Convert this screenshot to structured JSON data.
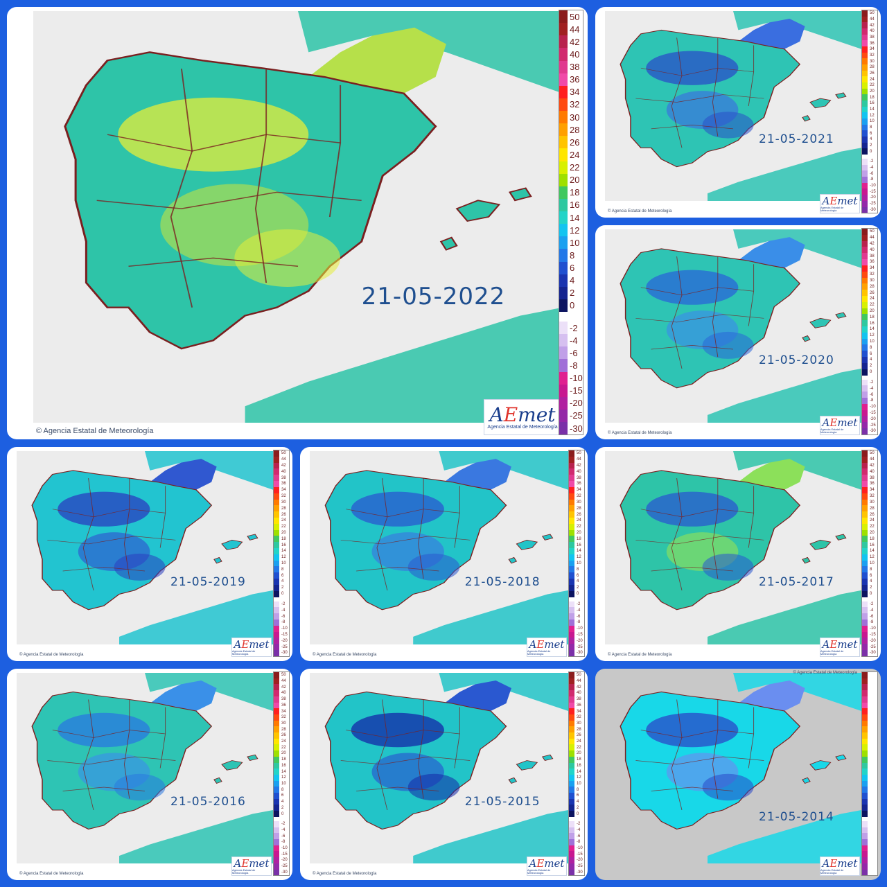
{
  "copyright": "Agencia Estatal de Meteorología",
  "logo": {
    "mark_a": "A",
    "mark_e": "E",
    "mark_rest": "met",
    "sub": "Agencia Estatal de Meteorología"
  },
  "legend": {
    "positive": [
      {
        "label": "50",
        "color": "#8b1c1c"
      },
      {
        "label": "44",
        "color": "#a02020"
      },
      {
        "label": "42",
        "color": "#b8224d"
      },
      {
        "label": "40",
        "color": "#d12a6e"
      },
      {
        "label": "38",
        "color": "#e03a8f"
      },
      {
        "label": "36",
        "color": "#f04aa8"
      },
      {
        "label": "34",
        "color": "#ff1f1f"
      },
      {
        "label": "32",
        "color": "#ff4a10"
      },
      {
        "label": "30",
        "color": "#ff7a00"
      },
      {
        "label": "28",
        "color": "#ffa000"
      },
      {
        "label": "26",
        "color": "#ffc400"
      },
      {
        "label": "24",
        "color": "#ffe600"
      },
      {
        "label": "22",
        "color": "#d8f000"
      },
      {
        "label": "20",
        "color": "#9ee000"
      },
      {
        "label": "18",
        "color": "#40c860"
      },
      {
        "label": "16",
        "color": "#2ec8a0"
      },
      {
        "label": "14",
        "color": "#22d4c8"
      },
      {
        "label": "12",
        "color": "#12c4f0"
      },
      {
        "label": "10",
        "color": "#1aa0f0"
      },
      {
        "label": "8",
        "color": "#2278e8"
      },
      {
        "label": "6",
        "color": "#2050d0"
      },
      {
        "label": "4",
        "color": "#1a34b0"
      },
      {
        "label": "2",
        "color": "#142490"
      },
      {
        "label": "0",
        "color": "#0c1460"
      }
    ],
    "negative": [
      {
        "label": "-2",
        "color": "#ece0f8"
      },
      {
        "label": "-4",
        "color": "#d6c0f0"
      },
      {
        "label": "-6",
        "color": "#c0a0e8"
      },
      {
        "label": "-8",
        "color": "#a070d8"
      },
      {
        "label": "-10",
        "color": "#e02090"
      },
      {
        "label": "-15",
        "color": "#c81890"
      },
      {
        "label": "-20",
        "color": "#b020a0"
      },
      {
        "label": "-25",
        "color": "#9428a8"
      },
      {
        "label": "-30",
        "color": "#7a30a8"
      }
    ]
  },
  "panels": [
    {
      "date": "21-05-2022",
      "color": "#2ec4a8",
      "blob": "#e6ee3a",
      "blob2": "#b6e04a",
      "ring": "#2ec4a8"
    },
    {
      "date": "21-05-2021",
      "color": "#2ec4b4",
      "blob": "#2a4fc8",
      "blob2": "#3a6ee0",
      "ring": "#2ec4b4"
    },
    {
      "date": "21-05-2020",
      "color": "#2ec4b4",
      "blob": "#2a66d8",
      "blob2": "#3a8ee8",
      "ring": "#2ec4b4"
    },
    {
      "date": "21-05-2019",
      "color": "#22c4d0",
      "blob": "#2a3ec0",
      "blob2": "#3058d0",
      "ring": "#22c4d0"
    },
    {
      "date": "21-05-2018",
      "color": "#22c4c8",
      "blob": "#2a58d0",
      "blob2": "#3a78e0",
      "ring": "#22c4c8"
    },
    {
      "date": "21-05-2017",
      "color": "#2ec4a8",
      "blob": "#2a58d0",
      "blob2": "#8ce05a",
      "ring": "#2ec4a8"
    },
    {
      "date": "21-05-2016",
      "color": "#2ec4b4",
      "blob": "#2a78e0",
      "blob2": "#3a90e8",
      "ring": "#2ec4b4"
    },
    {
      "date": "21-05-2015",
      "color": "#22c4c8",
      "blob": "#1428a8",
      "blob2": "#2a58d0",
      "ring": "#22c4c8"
    },
    {
      "date": "21-05-2014",
      "color": "#18d8e8",
      "blob": "#2a48c8",
      "blob2": "#6a8ef0",
      "ring": "#18d8e8"
    }
  ]
}
